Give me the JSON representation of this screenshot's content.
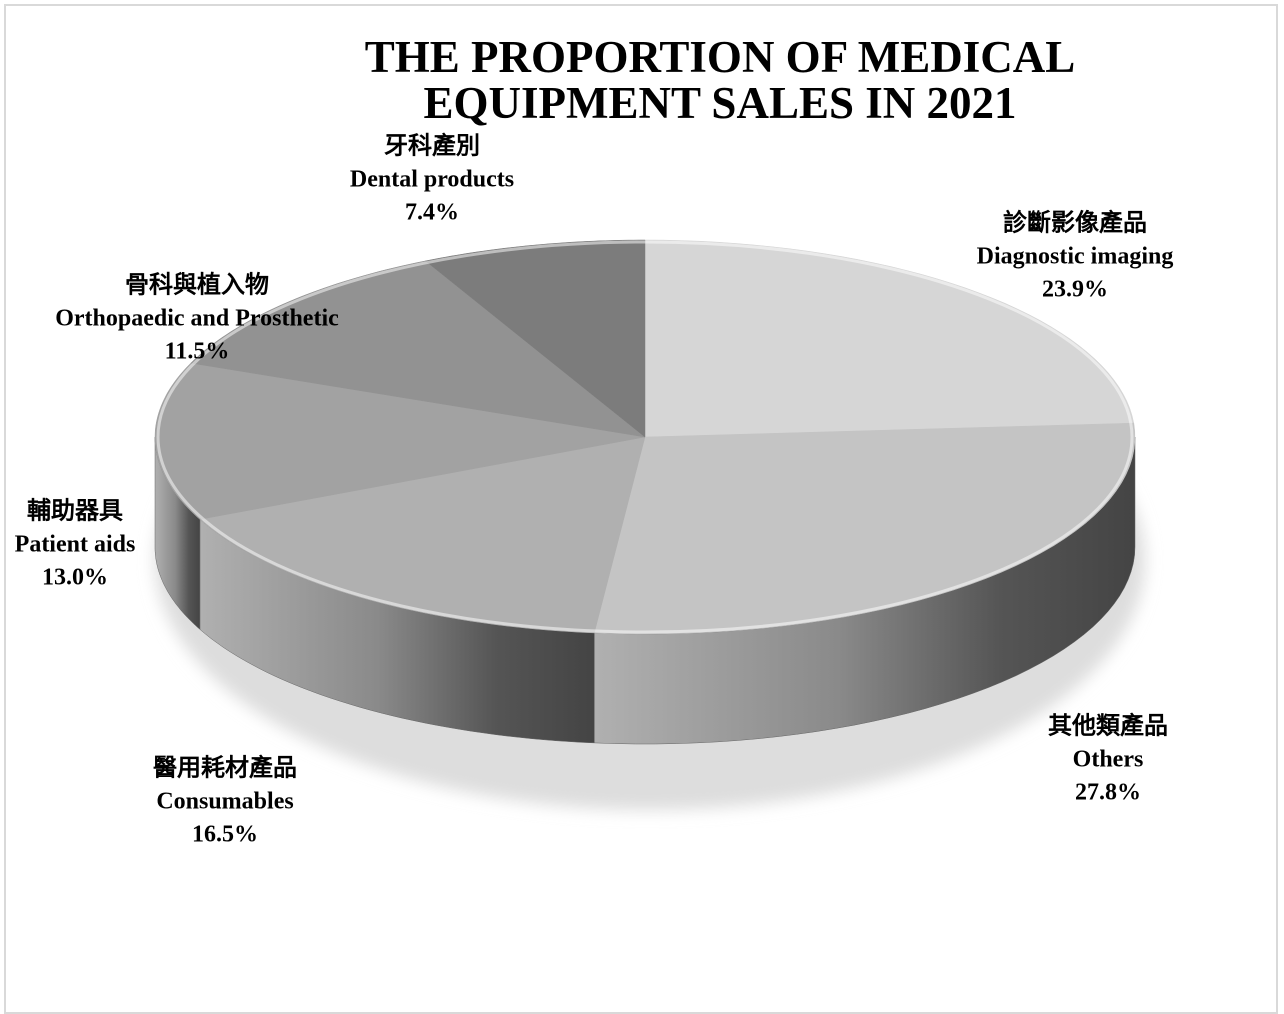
{
  "chart_data": {
    "type": "pie3d",
    "title": "THE PROPORTION OF MEDICAL     EQUIPMENT SALES IN 2021",
    "categories": [
      "Diagnostic imaging",
      "Others",
      "Consumables",
      "Patient aids",
      "Orthopaedic and Prosthetic",
      "Dental products"
    ],
    "categories_zh": [
      "診斷影像產品",
      "其他類產品",
      "醫用耗材產品",
      "輔助器具",
      "骨科與植入物",
      "牙科產別"
    ],
    "values": [
      23.9,
      27.8,
      16.5,
      13.0,
      11.5,
      7.4
    ],
    "value_labels": [
      "23.9%",
      "27.8%",
      "16.5%",
      "13.0%",
      "11.5%",
      "7.4%"
    ],
    "colors": [
      "#d6d6d6",
      "#c4c4c4",
      "#b0b0b0",
      "#a2a2a2",
      "#929292",
      "#7c7c7c"
    ]
  }
}
